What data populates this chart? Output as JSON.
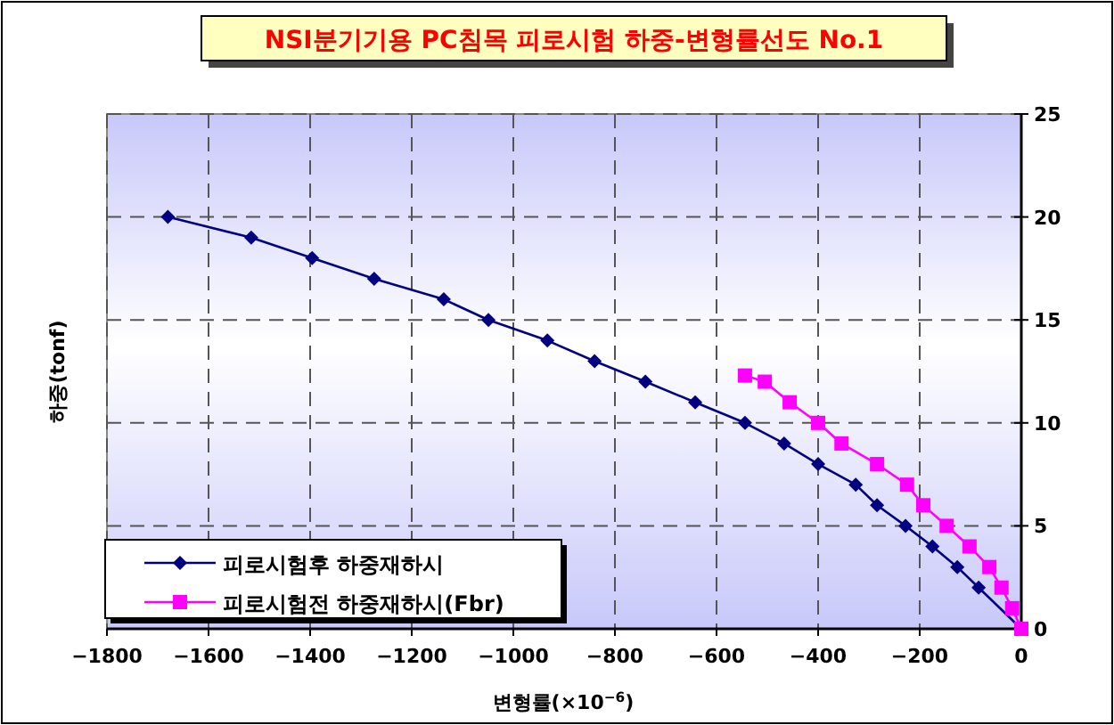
{
  "chart_data": {
    "type": "line",
    "title": "NSI분기기용 PC침목 피로시험 하중-변형률선도 No.1",
    "xlabel": "변형률(×10$^{−6}$)",
    "ylabel": "하중(tonf)",
    "xlim": [
      -1800,
      0
    ],
    "xticks": [
      -1800,
      -1600,
      -1400,
      -1200,
      -1000,
      -800,
      -600,
      -400,
      -200,
      0
    ],
    "ylim": [
      0,
      25
    ],
    "yticks": [
      0,
      5,
      10,
      15,
      20,
      25
    ],
    "grid": true,
    "legend": "bottom left",
    "line_style": "solid",
    "series": [
      {
        "name": "피로시험후 하중재하시",
        "color": "#000080",
        "marker": "diamond",
        "x": [
          -1680,
          -1516,
          -1396,
          -1274,
          -1137,
          -1049,
          -933,
          -840,
          -740,
          -642,
          -544,
          -467,
          -400,
          -326,
          -284,
          -228,
          -175,
          -126,
          -84,
          0
        ],
        "values": [
          20,
          19,
          18,
          17,
          16,
          15,
          14,
          13,
          12,
          11,
          10,
          9,
          8,
          7,
          6,
          5,
          4,
          3,
          2,
          0
        ]
      },
      {
        "name": "피로시험전 하중재하시(Fbr)",
        "color": "#ff00ff",
        "marker": "square",
        "x": [
          -544,
          -505,
          -456,
          -400,
          -354,
          -284,
          -225,
          -193,
          -147,
          -102,
          -63,
          -39,
          -18,
          0
        ],
        "values": [
          12.3,
          12,
          11,
          10,
          9,
          8,
          7,
          6,
          5,
          4,
          3,
          2,
          1,
          0
        ]
      }
    ]
  }
}
